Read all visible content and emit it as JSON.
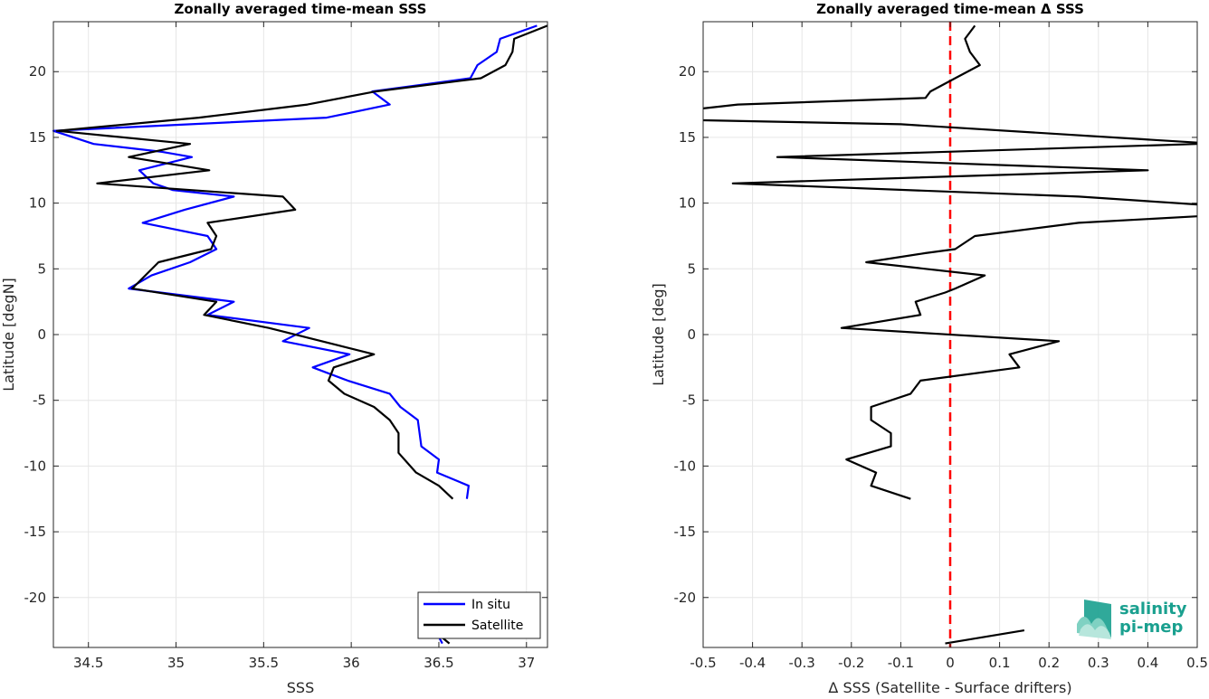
{
  "chart_data": [
    {
      "type": "line",
      "title": "Zonally averaged time-mean SSS",
      "xlabel": "SSS",
      "ylabel": "Latitude [degN]",
      "xlim": [
        34.3,
        37.12
      ],
      "ylim": [
        -23.8,
        23.8
      ],
      "xticks": [
        34.5,
        35,
        35.5,
        36,
        36.5,
        37
      ],
      "yticks": [
        -20,
        -15,
        -10,
        -5,
        0,
        5,
        10,
        15,
        20
      ],
      "grid": true,
      "legend_position": "bottom-right",
      "series": [
        {
          "name": "In situ",
          "color": "#0000ff",
          "segments": [
            [
              [
                37.06,
                23.5
              ],
              [
                36.85,
                22.5
              ],
              [
                36.83,
                21.5
              ],
              [
                36.72,
                20.5
              ],
              [
                36.68,
                19.5
              ],
              [
                36.12,
                18.5
              ],
              [
                36.22,
                17.5
              ],
              [
                35.86,
                16.5
              ],
              [
                34.3,
                15.5
              ],
              [
                34.53,
                14.5
              ],
              [
                34.92,
                13.9
              ],
              [
                35.09,
                13.5
              ],
              [
                34.79,
                12.5
              ],
              [
                34.87,
                11.5
              ],
              [
                34.98,
                11.0
              ],
              [
                35.33,
                10.5
              ],
              [
                35.05,
                9.5
              ],
              [
                34.81,
                8.5
              ],
              [
                35.18,
                7.5
              ],
              [
                35.23,
                6.5
              ],
              [
                35.08,
                5.5
              ],
              [
                34.86,
                4.5
              ],
              [
                34.73,
                3.5
              ],
              [
                35.33,
                2.5
              ],
              [
                35.18,
                1.5
              ],
              [
                35.76,
                0.5
              ],
              [
                35.61,
                -0.5
              ],
              [
                35.99,
                -1.5
              ],
              [
                35.78,
                -2.5
              ],
              [
                35.98,
                -3.5
              ],
              [
                36.22,
                -4.5
              ],
              [
                36.28,
                -5.5
              ],
              [
                36.38,
                -6.5
              ],
              [
                36.4,
                -8.5
              ],
              [
                36.5,
                -9.5
              ],
              [
                36.49,
                -10.5
              ],
              [
                36.67,
                -11.5
              ],
              [
                36.66,
                -12.5
              ]
            ],
            [
              [
                36.48,
                -22.5
              ],
              [
                36.52,
                -23.5
              ]
            ]
          ]
        },
        {
          "name": "Satellite",
          "color": "#000000",
          "segments": [
            [
              [
                37.12,
                23.5
              ],
              [
                36.93,
                22.5
              ],
              [
                36.92,
                21.5
              ],
              [
                36.88,
                20.5
              ],
              [
                36.74,
                19.5
              ],
              [
                36.14,
                18.5
              ],
              [
                35.75,
                17.5
              ],
              [
                35.13,
                16.5
              ],
              [
                34.32,
                15.5
              ],
              [
                35.08,
                14.5
              ],
              [
                34.73,
                13.5
              ],
              [
                35.19,
                12.5
              ],
              [
                34.55,
                11.5
              ],
              [
                35.61,
                10.5
              ],
              [
                35.68,
                9.5
              ],
              [
                35.18,
                8.5
              ],
              [
                35.23,
                7.5
              ],
              [
                35.2,
                6.5
              ],
              [
                34.9,
                5.5
              ],
              [
                34.75,
                3.5
              ],
              [
                35.23,
                2.5
              ],
              [
                35.16,
                1.5
              ],
              [
                35.53,
                0.5
              ],
              [
                36.13,
                -1.5
              ],
              [
                35.9,
                -2.5
              ],
              [
                35.87,
                -3.5
              ],
              [
                35.96,
                -4.5
              ],
              [
                36.13,
                -5.5
              ],
              [
                36.22,
                -6.5
              ],
              [
                36.27,
                -7.5
              ],
              [
                36.27,
                -9.0
              ],
              [
                36.37,
                -10.5
              ],
              [
                36.5,
                -11.5
              ],
              [
                36.58,
                -12.5
              ]
            ],
            [
              [
                36.47,
                -22.5
              ],
              [
                36.56,
                -23.5
              ]
            ]
          ]
        }
      ]
    },
    {
      "type": "line",
      "title": "Zonally averaged time-mean Δ SSS",
      "xlabel": "Δ SSS (Satellite - Surface drifters)",
      "ylabel": "Latitude [deg]",
      "xlim": [
        -0.5,
        0.5
      ],
      "ylim": [
        -23.8,
        23.8
      ],
      "xticks": [
        -0.5,
        -0.4,
        -0.3,
        -0.2,
        -0.1,
        0,
        0.1,
        0.2,
        0.3,
        0.4,
        0.5
      ],
      "yticks": [
        -20,
        -15,
        -10,
        -5,
        0,
        5,
        10,
        15,
        20
      ],
      "grid": true,
      "reference_line": {
        "x": 0,
        "color": "#ff0000",
        "style": "dashed"
      },
      "series": [
        {
          "color": "#000000",
          "segments": [
            [
              [
                0.05,
                23.5
              ],
              [
                0.03,
                22.5
              ],
              [
                0.04,
                21.5
              ],
              [
                0.06,
                20.5
              ],
              [
                0.01,
                19.5
              ],
              [
                -0.04,
                18.5
              ],
              [
                -0.05,
                18.0
              ],
              [
                -0.43,
                17.5
              ],
              [
                -0.5,
                17.2
              ]
            ],
            [
              [
                -0.5,
                16.3
              ],
              [
                -0.1,
                16.0
              ],
              [
                0.5,
                14.6
              ]
            ],
            [
              [
                0.5,
                14.5
              ],
              [
                -0.35,
                13.5
              ],
              [
                0.4,
                12.5
              ],
              [
                -0.44,
                11.5
              ],
              [
                0.26,
                10.5
              ],
              [
                0.5,
                9.9
              ]
            ],
            [
              [
                0.5,
                9.0
              ],
              [
                0.26,
                8.5
              ],
              [
                0.05,
                7.5
              ],
              [
                0.01,
                6.5
              ],
              [
                -0.05,
                6.2
              ],
              [
                -0.17,
                5.5
              ],
              [
                0.07,
                4.5
              ],
              [
                0.01,
                3.5
              ],
              [
                -0.01,
                3.2
              ],
              [
                -0.07,
                2.5
              ],
              [
                -0.06,
                1.5
              ],
              [
                -0.22,
                0.5
              ],
              [
                0.22,
                -0.5
              ],
              [
                0.12,
                -1.5
              ],
              [
                0.14,
                -2.5
              ],
              [
                -0.06,
                -3.5
              ],
              [
                -0.08,
                -4.5
              ],
              [
                -0.16,
                -5.5
              ],
              [
                -0.16,
                -6.5
              ],
              [
                -0.12,
                -7.5
              ],
              [
                -0.12,
                -8.5
              ],
              [
                -0.21,
                -9.5
              ],
              [
                -0.15,
                -10.5
              ],
              [
                -0.16,
                -11.5
              ],
              [
                -0.08,
                -12.5
              ]
            ],
            [
              [
                0.15,
                -22.5
              ],
              [
                -0.01,
                -23.5
              ]
            ]
          ]
        }
      ]
    }
  ],
  "legend": {
    "entries": [
      {
        "label": "In situ",
        "color": "#0000ff"
      },
      {
        "label": "Satellite",
        "color": "#000000"
      }
    ]
  },
  "logo": {
    "line1": "salinity",
    "line2": "pi-mep",
    "color": "#1aa08f"
  }
}
